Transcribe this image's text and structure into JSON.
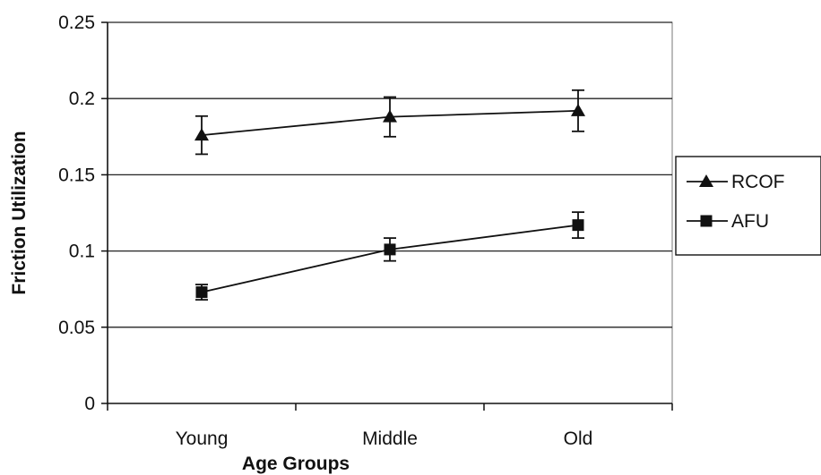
{
  "chart_data": {
    "type": "line",
    "xlabel": "Age Groups",
    "ylabel": "Friction Utilization",
    "categories": [
      "Young",
      "Middle",
      "Old"
    ],
    "ylim": [
      0,
      0.25
    ],
    "yticks": [
      0,
      0.05,
      0.1,
      0.15,
      0.2,
      0.25
    ],
    "ytick_labels": [
      "0",
      "0.05",
      "0.1",
      "0.15",
      "0.2",
      "0.25"
    ],
    "grid": "horizontal",
    "legend_position": "right",
    "series": [
      {
        "name": "RCOF",
        "marker": "triangle",
        "values": [
          0.176,
          0.188,
          0.192
        ],
        "error": [
          0.0125,
          0.013,
          0.0135
        ]
      },
      {
        "name": "AFU",
        "marker": "square",
        "values": [
          0.073,
          0.101,
          0.117
        ],
        "error": [
          0.005,
          0.0075,
          0.0085
        ]
      }
    ],
    "colors": {
      "line": "#111111",
      "grid": "#222222",
      "background": "#ffffff"
    }
  }
}
